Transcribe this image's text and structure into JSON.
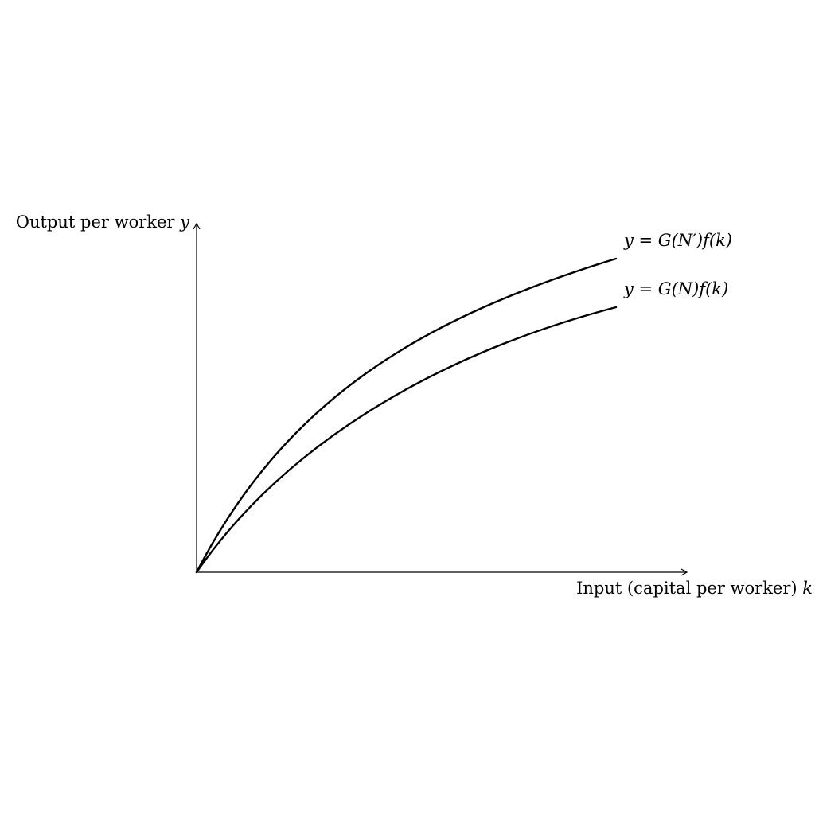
{
  "axes": {
    "y_label_text": "Output per worker ",
    "y_label_var": "y",
    "x_label_text": "Input (capital per worker) ",
    "x_label_var": "k"
  },
  "curves": [
    {
      "label": "y = G(N′)f(k)",
      "level": "higher"
    },
    {
      "label": "y = G(N)f(k)",
      "level": "lower"
    }
  ],
  "colors": {
    "ink": "#000000",
    "background": "#ffffff"
  }
}
